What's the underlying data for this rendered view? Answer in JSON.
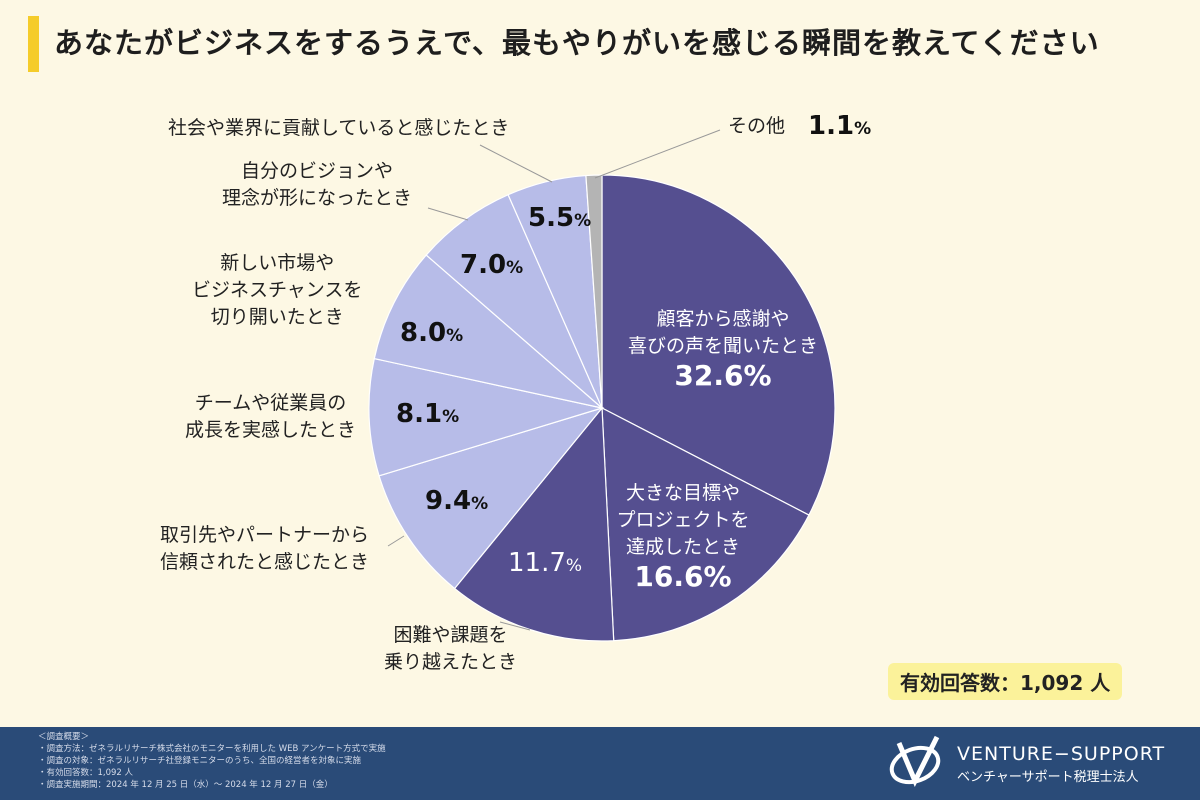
{
  "title": "あなたがビジネスをするうえで、最もやりがいを感じる瞬間を教えてください",
  "chart_data": {
    "type": "pie",
    "title": "あなたがビジネスをするうえで、最もやりがいを感じる瞬間を教えてください",
    "start": "12 o'clock, clockwise",
    "slices": [
      {
        "label": "顧客から感謝や喜びの声を聞いたとき",
        "label_lines": [
          "顧客から感謝や",
          "喜びの声を聞いたとき"
        ],
        "value": 32.6,
        "display": "32.6%",
        "color": "#554f90"
      },
      {
        "label": "大きな目標やプロジェクトを達成したとき",
        "label_lines": [
          "大きな目標や",
          "プロジェクトを",
          "達成したとき"
        ],
        "value": 16.6,
        "display": "16.6%",
        "color": "#554f90"
      },
      {
        "label": "困難や課題を乗り越えたとき",
        "label_lines": [
          "困難や課題を",
          "乗り越えたとき"
        ],
        "value": 11.7,
        "display": "11.7",
        "color": "#554f90"
      },
      {
        "label": "取引先やパートナーから信頼されたと感じたとき",
        "label_lines": [
          "取引先やパートナーから",
          "信頼されたと感じたとき"
        ],
        "value": 9.4,
        "display": "9.4",
        "color": "#b7bce8"
      },
      {
        "label": "チームや従業員の成長を実感したとき",
        "label_lines": [
          "チームや従業員の",
          "成長を実感したとき"
        ],
        "value": 8.1,
        "display": "8.1",
        "color": "#b7bce8"
      },
      {
        "label": "新しい市場やビジネスチャンスを切り開いたとき",
        "label_lines": [
          "新しい市場や",
          "ビジネスチャンスを",
          "切り開いたとき"
        ],
        "value": 8.0,
        "display": "8.0",
        "color": "#b7bce8"
      },
      {
        "label": "自分のビジョンや理念が形になったとき",
        "label_lines": [
          "自分のビジョンや",
          "理念が形になったとき"
        ],
        "value": 7.0,
        "display": "7.0",
        "color": "#b7bce8"
      },
      {
        "label": "社会や業界に貢献していると感じたとき",
        "label_lines": [
          "社会や業界に貢献していると感じたとき"
        ],
        "value": 5.5,
        "display": "5.5",
        "color": "#b7bce8"
      },
      {
        "label": "その他",
        "label_lines": [
          "その他"
        ],
        "value": 1.1,
        "display": "1.1",
        "color": "#b4b4b4"
      }
    ],
    "percent_sign": "%"
  },
  "respondents": "有効回答数：1,092 人",
  "footer": {
    "notes": [
      "＜調査概要＞",
      "・調査方法：ゼネラルリサーチ株式会社のモニターを利用した WEB アンケート方式で実施",
      "・調査の対象：ゼネラルリサーチ社登録モニターのうち、全国の経営者を対象に実施",
      "・有効回答数：1,092 人",
      "・調査実施期間：2024 年 12 月 25 日（水）～ 2024 年 12 月 27 日（金）"
    ],
    "brand": "VENTURE−SUPPORT",
    "brand_sub": "ベンチャーサポート税理士法人"
  }
}
